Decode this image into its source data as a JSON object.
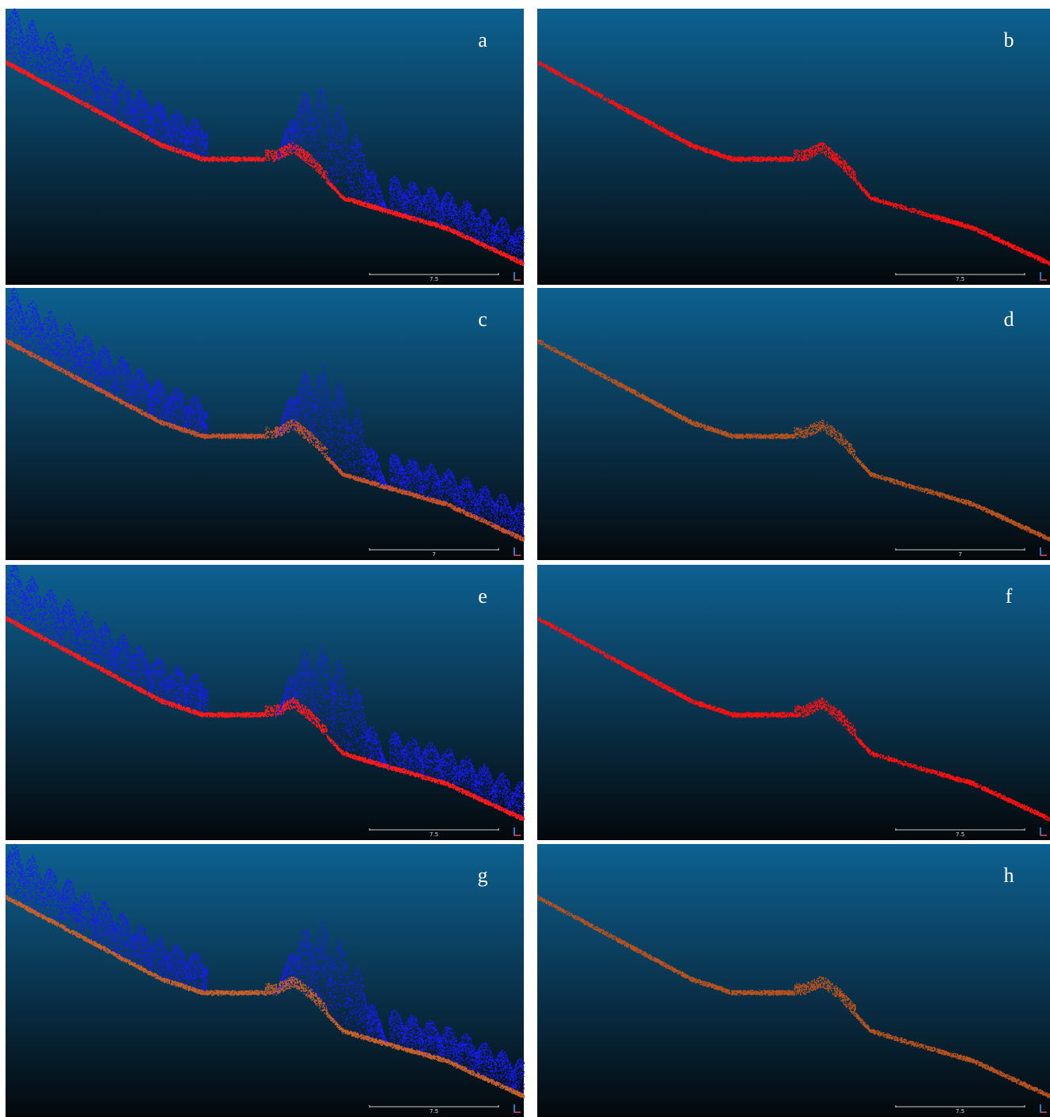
{
  "panels": [
    {
      "label": "a",
      "scale": "7.5"
    },
    {
      "label": "b",
      "scale": "7.5"
    },
    {
      "label": "c",
      "scale": "7"
    },
    {
      "label": "d",
      "scale": "7"
    },
    {
      "label": "e",
      "scale": "7.5"
    },
    {
      "label": "f",
      "scale": "7.5"
    },
    {
      "label": "g",
      "scale": "7.5"
    },
    {
      "label": "h",
      "scale": "7.5"
    }
  ]
}
